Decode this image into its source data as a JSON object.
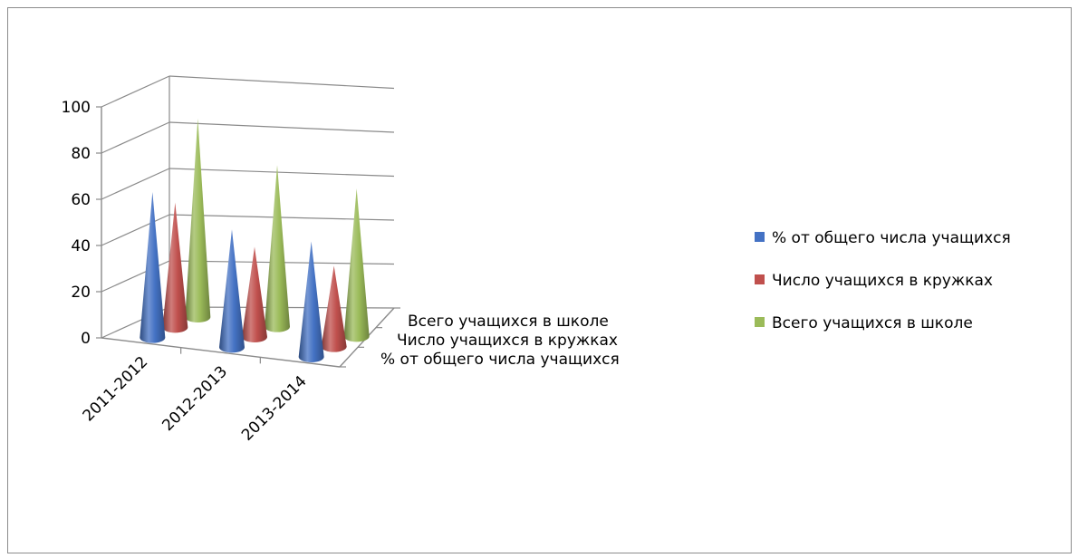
{
  "chart_data": {
    "type": "bar",
    "variant": "3d-cone",
    "categories": [
      "2011-2012",
      "2012-2013",
      "2013-2014"
    ],
    "series": [
      {
        "name": "% от общего числа учащихся",
        "values": [
          63,
          51,
          50
        ],
        "color": "#4472c4"
      },
      {
        "name": "Число учащихся в кружках",
        "values": [
          54,
          39,
          35
        ],
        "color": "#c0504d"
      },
      {
        "name": "Всего учащихся  в школе",
        "values": [
          86,
          70,
          64
        ],
        "color": "#9bbb59"
      }
    ],
    "y_ticks": [
      "0",
      "20",
      "40",
      "60",
      "80",
      "100"
    ],
    "ylim": [
      0,
      100
    ],
    "depth_labels": [
      "Всего учащихся  в школе",
      "Число учащихся в кружках",
      "% от общего числа учащихся"
    ],
    "legend_position": "right",
    "grid": true
  }
}
